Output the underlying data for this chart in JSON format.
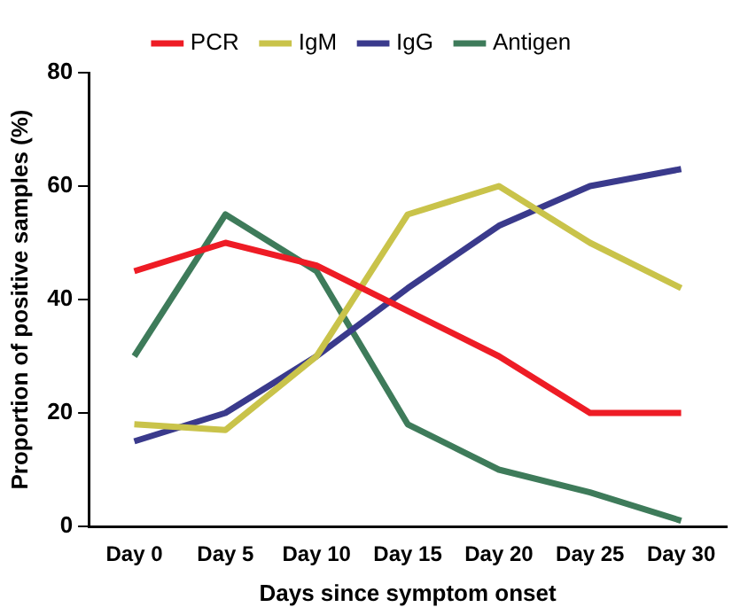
{
  "chart_data": {
    "type": "line",
    "xlabel": "Days since symptom onset",
    "ylabel": "Proportion of positive samples (%)",
    "categories": [
      "Day 0",
      "Day 5",
      "Day 10",
      "Day 15",
      "Day 20",
      "Day 25",
      "Day 30"
    ],
    "series": [
      {
        "name": "PCR",
        "color": "#ee1c25",
        "values": [
          45,
          50,
          46,
          38,
          30,
          20,
          20
        ]
      },
      {
        "name": "IgM",
        "color": "#c9c34a",
        "values": [
          18,
          17,
          30,
          55,
          60,
          50,
          42
        ]
      },
      {
        "name": "IgG",
        "color": "#3a3a8c",
        "values": [
          15,
          20,
          30,
          42,
          53,
          60,
          63
        ]
      },
      {
        "name": "Antigen",
        "color": "#3e7b5a",
        "values": [
          30,
          55,
          45,
          18,
          10,
          6,
          1
        ]
      }
    ],
    "ylim": [
      0,
      80
    ],
    "yticks": [
      0,
      20,
      40,
      60,
      80
    ],
    "grid": false,
    "legend": "top",
    "marker": "none",
    "line_style": "solid"
  }
}
